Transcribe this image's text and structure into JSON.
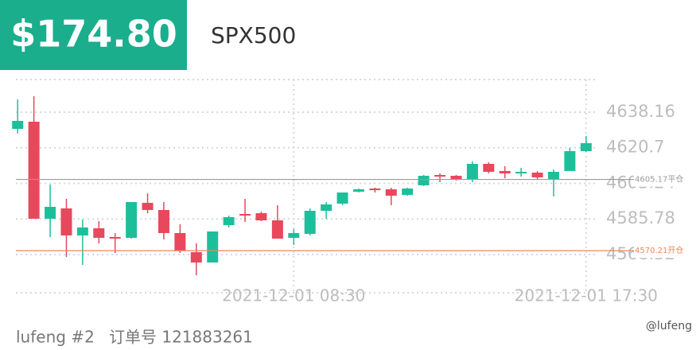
{
  "header": {
    "price": "$174.80",
    "symbol": "SPX500"
  },
  "chart_data": {
    "type": "candlestick",
    "categories": [
      null,
      null,
      null,
      null,
      null,
      null,
      null,
      null,
      null,
      null,
      null,
      null,
      null,
      null,
      null,
      null,
      null,
      "2021-12-01 08:30",
      null,
      null,
      null,
      null,
      null,
      null,
      null,
      null,
      null,
      null,
      null,
      null,
      null,
      null,
      null,
      null,
      null,
      "2021-12-01 17:30"
    ],
    "open": [
      4629.97,
      4633.48,
      4585.87,
      4590.95,
      4577.68,
      4581.19,
      4576.9,
      4576.51,
      4593.68,
      4590.17,
      4578.85,
      4569.48,
      4564.41,
      4582.75,
      4588.21,
      4588.6,
      4585.09,
      4576.51,
      4578.46,
      4589.77,
      4593.29,
      4599.14,
      4600.7,
      4600.31,
      4597.58,
      4602.26,
      4607.33,
      4606.94,
      4604.99,
      4612.8,
      4609.29,
      4608.11,
      4608.5,
      4605.38,
      4609.29,
      4619.04
    ],
    "high": [
      4644.4,
      4645.96,
      4602.65,
      4595.63,
      4585.48,
      4584.7,
      4578.85,
      4594.07,
      4598.36,
      4594.07,
      4583.14,
      4573.78,
      4579.63,
      4587.43,
      4595.63,
      4589.39,
      4592.51,
      4580.8,
      4590.95,
      4594.07,
      4598.75,
      4600.7,
      4601.09,
      4601.09,
      4601.09,
      4607.33,
      4608.11,
      4607.33,
      4613.97,
      4613.58,
      4611.63,
      4610.85,
      4609.29,
      4610.06,
      4620.6,
      4626.45
    ],
    "low": [
      4627.63,
      4585.87,
      4576.9,
      4567.14,
      4563.24,
      4573.78,
      4569.09,
      4576.12,
      4588.6,
      4575.73,
      4569.09,
      4558.17,
      4564.41,
      4581.58,
      4584.31,
      4584.7,
      4576.12,
      4572.99,
      4577.68,
      4585.87,
      4592.51,
      4598.75,
      4598.75,
      4592.51,
      4597.19,
      4601.87,
      4603.82,
      4604.6,
      4603.82,
      4608.11,
      4605.77,
      4606.55,
      4605.38,
      4596.8,
      4609.29,
      4618.65
    ],
    "close": [
      4633.87,
      4585.87,
      4591.73,
      4577.68,
      4581.58,
      4576.51,
      4576.12,
      4594.07,
      4590.17,
      4578.85,
      4570.27,
      4564.41,
      4579.63,
      4586.65,
      4587.43,
      4585.09,
      4576.12,
      4578.85,
      4589.77,
      4592.9,
      4598.75,
      4600.31,
      4599.92,
      4597.19,
      4600.7,
      4606.94,
      4606.55,
      4604.99,
      4612.8,
      4608.89,
      4608.11,
      4608.89,
      4606.16,
      4608.89,
      4619.04,
      4622.94
    ],
    "up_color": "#1dbf9b",
    "down_color": "#e8485c",
    "ylim": [
      4549.58,
      4654.16
    ],
    "yticks": [
      4568.32,
      4585.78,
      4603.24,
      4620.7,
      4638.16
    ],
    "grid": true,
    "price_lines": [
      {
        "value": 4605.17,
        "label": "4605.17平仓",
        "color": "#9a9a9a"
      },
      {
        "value": 4570.21,
        "label": "4570.21开仓",
        "color": "#f0845a"
      }
    ]
  },
  "footer": {
    "account": "lufeng #2",
    "order": "订单号 121883261",
    "watermark": "@lufeng"
  }
}
